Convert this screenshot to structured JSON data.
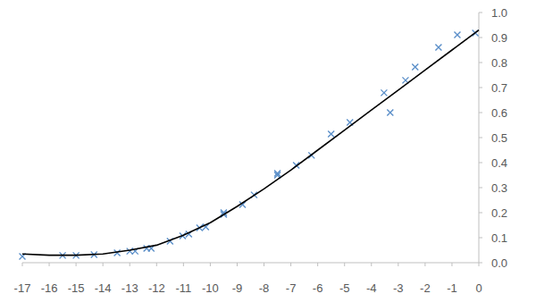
{
  "chart_data": {
    "type": "scatter",
    "xlim": [
      -17,
      0
    ],
    "ylim": [
      0,
      1
    ],
    "xticks": [
      -17,
      -16,
      -15,
      -14,
      -13,
      -12,
      -11,
      -10,
      -9,
      -8,
      -7,
      -6,
      -5,
      -4,
      -3,
      -2,
      -1,
      0
    ],
    "yticks": [
      {
        "value": 0,
        "label": "0.0"
      },
      {
        "value": 0.1,
        "label": "0.1"
      },
      {
        "value": 0.2,
        "label": "0.2"
      },
      {
        "value": 0.3,
        "label": "0.3"
      },
      {
        "value": 0.4,
        "label": "0.4"
      },
      {
        "value": 0.5,
        "label": "0.5"
      },
      {
        "value": 0.6,
        "label": "0.6"
      },
      {
        "value": 0.7,
        "label": "0.7"
      },
      {
        "value": 0.8,
        "label": "0.8"
      },
      {
        "value": 0.9,
        "label": "0.9"
      },
      {
        "value": 1,
        "label": "1.0"
      }
    ],
    "grid": false,
    "series": [
      {
        "type": "scatter",
        "marker": "x",
        "color": "#5b8fc9",
        "x": [
          -17,
          -15.5,
          -15,
          -14.33,
          -13.47,
          -13,
          -12.8,
          -12.37,
          -12.2,
          -11.5,
          -11.03,
          -10.8,
          -10.4,
          -10.17,
          -9.5,
          -9.5,
          -8.8,
          -8.37,
          -7.5,
          -7.5,
          -6.8,
          -6.23,
          -5.5,
          -4.8,
          -3.53,
          -3.3,
          -2.73,
          -2.37,
          -1.5,
          -0.8,
          -0.13
        ],
        "values": [
          0.025,
          0.029,
          0.029,
          0.032,
          0.039,
          0.046,
          0.046,
          0.057,
          0.057,
          0.086,
          0.107,
          0.114,
          0.139,
          0.143,
          0.2,
          0.193,
          0.232,
          0.271,
          0.35,
          0.357,
          0.389,
          0.429,
          0.514,
          0.561,
          0.679,
          0.6,
          0.729,
          0.782,
          0.861,
          0.911,
          0.918
        ]
      },
      {
        "type": "line",
        "line_style": "solid",
        "color": "#000000",
        "x": [
          -17,
          -16,
          -15,
          -14,
          -13,
          -12,
          -11,
          -10,
          -9,
          -8,
          -7,
          -6,
          -5,
          -4,
          -3,
          -2,
          -1,
          0
        ],
        "values": [
          0.035,
          0.03,
          0.03,
          0.035,
          0.05,
          0.07,
          0.11,
          0.16,
          0.225,
          0.295,
          0.37,
          0.45,
          0.53,
          0.61,
          0.69,
          0.77,
          0.85,
          0.93
        ]
      }
    ]
  }
}
